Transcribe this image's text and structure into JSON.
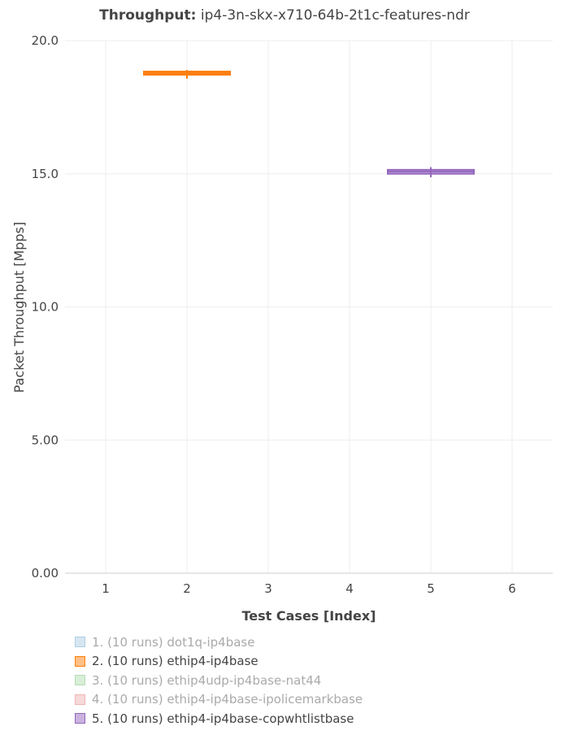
{
  "chart_data": {
    "type": "box",
    "title_bold": "Throughput:",
    "title_rest": " ip4-3n-skx-x710-64b-2t1c-features-ndr",
    "xlabel": "Test Cases [Index]",
    "ylabel": "Packet Throughput [Mpps]",
    "xlim": [
      0.5,
      6.5
    ],
    "ylim": [
      0,
      20
    ],
    "xticks": [
      "1",
      "2",
      "3",
      "4",
      "5",
      "6"
    ],
    "yticks": [
      "0.00",
      "5.00",
      "10.0",
      "15.0",
      "20.0"
    ],
    "grid": true,
    "legend_placement": "bottom-left",
    "series": [
      {
        "name": "1. (10 runs) dot1q-ip4base",
        "color": "#1f77b4",
        "visible": false,
        "x": 1
      },
      {
        "name": "2. (10 runs) ethip4-ip4base",
        "color": "#ff7f0e",
        "visible": true,
        "x": 2,
        "min": 18.57,
        "q1": 18.72,
        "median": 18.78,
        "q3": 18.84,
        "max": 18.9
      },
      {
        "name": "3. (10 runs) ethip4udp-ip4base-nat44",
        "color": "#2ca02c",
        "visible": false,
        "x": 3
      },
      {
        "name": "4. (10 runs) ethip4-ip4base-ipolicemarkbase",
        "color": "#d62728",
        "visible": false,
        "x": 4
      },
      {
        "name": "5. (10 runs) ethip4-ip4base-copwhtlistbase",
        "color": "#9467bd",
        "visible": true,
        "x": 5,
        "min": 14.87,
        "q1": 15.0,
        "median": 15.08,
        "q3": 15.15,
        "max": 15.25
      }
    ]
  }
}
